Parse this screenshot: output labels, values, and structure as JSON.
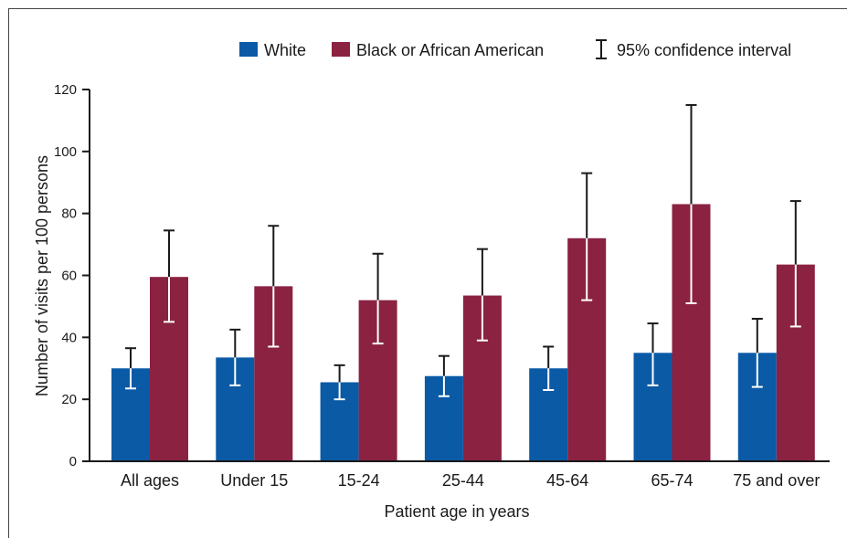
{
  "chart_data": {
    "type": "bar",
    "title": "",
    "xlabel": "Patient age in years",
    "ylabel": "Number of visits per 100 persons",
    "ylim": [
      0,
      120
    ],
    "yticks": [
      0,
      20,
      40,
      60,
      80,
      100,
      120
    ],
    "categories": [
      "All ages",
      "Under 15",
      "15-24",
      "25-44",
      "45-64",
      "65-74",
      "75 and over"
    ],
    "series": [
      {
        "name": "White",
        "color": "#0a5aa6",
        "values": [
          30,
          33.5,
          25.5,
          27.5,
          30,
          35,
          35
        ],
        "ci_low": [
          23.5,
          24.5,
          20,
          21,
          23,
          24.5,
          24
        ],
        "ci_high": [
          36.5,
          42.5,
          31,
          34,
          37,
          44.5,
          46
        ]
      },
      {
        "name": "Black or African American",
        "color": "#8b2242",
        "values": [
          59.5,
          56.5,
          52,
          53.5,
          72,
          83,
          63.5
        ],
        "ci_low": [
          45,
          37,
          38,
          39,
          52,
          51,
          43.5
        ],
        "ci_high": [
          74.5,
          76,
          67,
          68.5,
          93,
          115,
          84
        ]
      }
    ],
    "legend": {
      "placement": "top-right",
      "ci_label": "95% confidence interval"
    },
    "grid": false
  }
}
